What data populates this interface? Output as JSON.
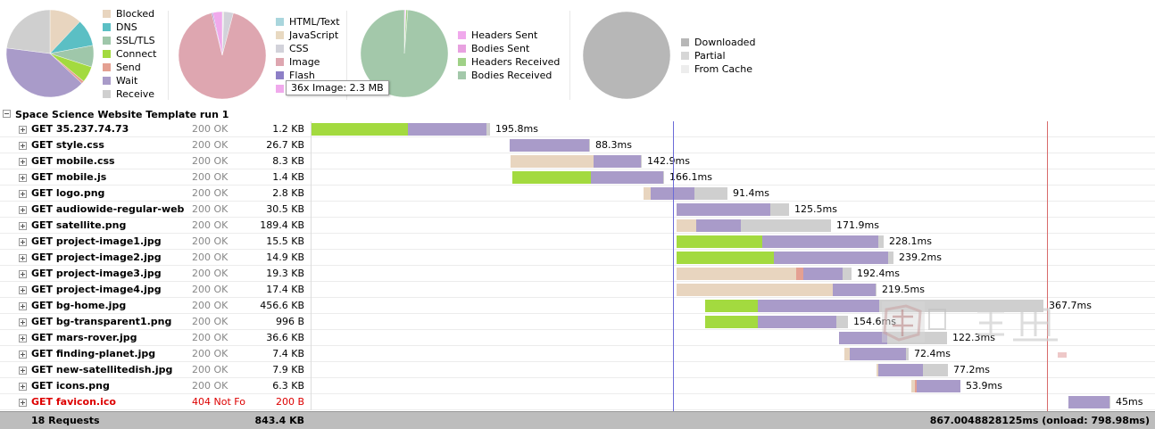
{
  "charts": {
    "timing": {
      "slices": [
        {
          "name": "Blocked",
          "value": 12,
          "color": "#e8d5bf"
        },
        {
          "name": "DNS",
          "value": 10,
          "color": "#5bbfc4"
        },
        {
          "name": "SSL/TLS",
          "value": 8,
          "color": "#9fc7aa"
        },
        {
          "name": "Connect",
          "value": 6,
          "color": "#a3da3f"
        },
        {
          "name": "Send",
          "value": 1,
          "color": "#e4a092"
        },
        {
          "name": "Wait",
          "value": 40,
          "color": "#a99bc9"
        },
        {
          "name": "Receive",
          "value": 23,
          "color": "#cfcfcf"
        }
      ]
    },
    "content": {
      "slices": [
        {
          "name": "HTML/Text",
          "value": 0.3,
          "color": "#a9d6dd"
        },
        {
          "name": "JavaScript",
          "value": 0.3,
          "color": "#e8d9c1"
        },
        {
          "name": "CSS",
          "value": 3.5,
          "color": "#d2d2da"
        },
        {
          "name": "Image",
          "value": 92,
          "color": "#dea6b0"
        },
        {
          "name": "Flash",
          "value": 0.4,
          "color": "#8d7fc7"
        },
        {
          "name": "Other",
          "value": 3.5,
          "color": "#f0a9ec"
        }
      ]
    },
    "traffic": {
      "slices": [
        {
          "name": "Headers Sent",
          "value": 0.4,
          "color": "#f0a9ec"
        },
        {
          "name": "Bodies Sent",
          "value": 0.2,
          "color": "#e8a1e0"
        },
        {
          "name": "Headers Received",
          "value": 0.7,
          "color": "#9fd187"
        },
        {
          "name": "Bodies Received",
          "value": 98.7,
          "color": "#a3c8aa"
        }
      ]
    },
    "cache": {
      "slices": [
        {
          "name": "Downloaded",
          "value": 100,
          "color": "#b7b7b7"
        },
        {
          "name": "Partial",
          "value": 0,
          "color": "#d6d6d6"
        },
        {
          "name": "From Cache",
          "value": 0,
          "color": "#ededed"
        }
      ]
    }
  },
  "tooltip": "36x Image: 2.3 MB",
  "group_title": "Space Science Website Template run 1",
  "requests": [
    {
      "name": "GET 35.237.74.73",
      "status": "200 OK",
      "size": "1.2 KB",
      "duration": "195.8ms",
      "segments": [
        {
          "type": "connect",
          "start": 0,
          "end": 108
        },
        {
          "type": "wait",
          "start": 108,
          "end": 196
        },
        {
          "type": "receive",
          "start": 196,
          "end": 200
        }
      ]
    },
    {
      "name": "GET style.css",
      "status": "200 OK",
      "size": "26.7 KB",
      "duration": "88.3ms",
      "segments": [
        {
          "type": "wait",
          "start": 222,
          "end": 311
        },
        {
          "type": "receive",
          "start": 311,
          "end": 312
        }
      ]
    },
    {
      "name": "GET mobile.css",
      "status": "200 OK",
      "size": "8.3 KB",
      "duration": "142.9ms",
      "segments": [
        {
          "type": "blocked",
          "start": 223,
          "end": 316
        },
        {
          "type": "wait",
          "start": 316,
          "end": 369
        },
        {
          "type": "receive",
          "start": 369,
          "end": 370
        }
      ]
    },
    {
      "name": "GET mobile.js",
      "status": "200 OK",
      "size": "1.4 KB",
      "duration": "166.1ms",
      "segments": [
        {
          "type": "connect",
          "start": 225,
          "end": 313
        },
        {
          "type": "wait",
          "start": 313,
          "end": 394
        },
        {
          "type": "receive",
          "start": 394,
          "end": 395
        }
      ]
    },
    {
      "name": "GET logo.png",
      "status": "200 OK",
      "size": "2.8 KB",
      "duration": "91.4ms",
      "segments": [
        {
          "type": "blocked",
          "start": 372,
          "end": 380
        },
        {
          "type": "wait",
          "start": 380,
          "end": 429
        },
        {
          "type": "receive",
          "start": 429,
          "end": 466
        }
      ]
    },
    {
      "name": "GET audiowide-regular-web",
      "status": "200 OK",
      "size": "30.5 KB",
      "duration": "125.5ms",
      "segments": [
        {
          "type": "wait",
          "start": 409,
          "end": 514
        },
        {
          "type": "receive",
          "start": 514,
          "end": 535
        }
      ]
    },
    {
      "name": "GET satellite.png",
      "status": "200 OK",
      "size": "189.4 KB",
      "duration": "171.9ms",
      "segments": [
        {
          "type": "blocked",
          "start": 409,
          "end": 431
        },
        {
          "type": "wait",
          "start": 431,
          "end": 481
        },
        {
          "type": "receive",
          "start": 481,
          "end": 582
        }
      ]
    },
    {
      "name": "GET project-image1.jpg",
      "status": "200 OK",
      "size": "15.5 KB",
      "duration": "228.1ms",
      "segments": [
        {
          "type": "connect",
          "start": 409,
          "end": 505
        },
        {
          "type": "wait",
          "start": 505,
          "end": 635
        },
        {
          "type": "receive",
          "start": 635,
          "end": 641
        }
      ]
    },
    {
      "name": "GET project-image2.jpg",
      "status": "200 OK",
      "size": "14.9 KB",
      "duration": "239.2ms",
      "segments": [
        {
          "type": "connect",
          "start": 409,
          "end": 518
        },
        {
          "type": "wait",
          "start": 518,
          "end": 646
        },
        {
          "type": "receive",
          "start": 646,
          "end": 652
        }
      ]
    },
    {
      "name": "GET project-image3.jpg",
      "status": "200 OK",
      "size": "19.3 KB",
      "duration": "192.4ms",
      "segments": [
        {
          "type": "blocked",
          "start": 409,
          "end": 543
        },
        {
          "type": "send",
          "start": 543,
          "end": 551
        },
        {
          "type": "wait",
          "start": 551,
          "end": 595
        },
        {
          "type": "receive",
          "start": 595,
          "end": 605
        }
      ]
    },
    {
      "name": "GET project-image4.jpg",
      "status": "200 OK",
      "size": "17.4 KB",
      "duration": "219.5ms",
      "segments": [
        {
          "type": "blocked",
          "start": 409,
          "end": 584
        },
        {
          "type": "wait",
          "start": 584,
          "end": 632
        },
        {
          "type": "receive",
          "start": 632,
          "end": 633
        }
      ]
    },
    {
      "name": "GET bg-home.jpg",
      "status": "200 OK",
      "size": "456.6 KB",
      "duration": "367.7ms",
      "segments": [
        {
          "type": "connect",
          "start": 441,
          "end": 500
        },
        {
          "type": "wait",
          "start": 500,
          "end": 636
        },
        {
          "type": "receive",
          "start": 636,
          "end": 820
        }
      ]
    },
    {
      "name": "GET bg-transparent1.png",
      "status": "200 OK",
      "size": "996 B",
      "duration": "154.6ms",
      "segments": [
        {
          "type": "connect",
          "start": 441,
          "end": 500
        },
        {
          "type": "wait",
          "start": 500,
          "end": 588
        },
        {
          "type": "receive",
          "start": 588,
          "end": 601
        }
      ]
    },
    {
      "name": "GET mars-rover.jpg",
      "status": "200 OK",
      "size": "36.6 KB",
      "duration": "122.3ms",
      "segments": [
        {
          "type": "wait",
          "start": 591,
          "end": 645
        },
        {
          "type": "receive",
          "start": 645,
          "end": 712
        }
      ]
    },
    {
      "name": "GET finding-planet.jpg",
      "status": "200 OK",
      "size": "7.4 KB",
      "duration": "72.4ms",
      "segments": [
        {
          "type": "blocked",
          "start": 597,
          "end": 603
        },
        {
          "type": "wait",
          "start": 603,
          "end": 666
        },
        {
          "type": "receive",
          "start": 666,
          "end": 669
        }
      ]
    },
    {
      "name": "GET new-satellitedish.jpg",
      "status": "200 OK",
      "size": "7.9 KB",
      "duration": "77.2ms",
      "segments": [
        {
          "type": "blocked",
          "start": 633,
          "end": 635
        },
        {
          "type": "wait",
          "start": 635,
          "end": 685
        },
        {
          "type": "receive",
          "start": 685,
          "end": 713
        }
      ]
    },
    {
      "name": "GET icons.png",
      "status": "200 OK",
      "size": "6.3 KB",
      "duration": "53.9ms",
      "segments": [
        {
          "type": "blocked",
          "start": 672,
          "end": 676
        },
        {
          "type": "send",
          "start": 676,
          "end": 678
        },
        {
          "type": "wait",
          "start": 678,
          "end": 727
        }
      ]
    },
    {
      "name": "GET favicon.ico",
      "status": "404 Not Fo",
      "size": "200 B",
      "duration": "45ms",
      "error": true,
      "segments": [
        {
          "type": "wait",
          "start": 848,
          "end": 894
        },
        {
          "type": "receive",
          "start": 894,
          "end": 895
        }
      ]
    }
  ],
  "colors": {
    "blocked": "#e8d5bf",
    "dns": "#5bbfc4",
    "ssl": "#9fc7aa",
    "connect": "#a3da3f",
    "send": "#e4a092",
    "wait": "#a99bc9",
    "receive": "#cfcfcf",
    "dom_line": "#6b6bd8",
    "onload_line": "#d86b6b"
  },
  "timeline_markers": {
    "dom_content_loaded": 405,
    "onload": 824
  },
  "footer": {
    "requests": "18 Requests",
    "total_size": "843.4 KB",
    "total_time": "867.0048828125ms (onload: 798.98ms)"
  }
}
